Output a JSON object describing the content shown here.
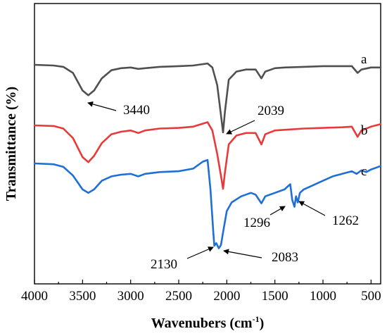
{
  "chart_data": {
    "type": "line",
    "title": "",
    "xlabel_main": "Wavenubers (cm",
    "xlabel_sup": "-1",
    "xlabel_tail": ")",
    "ylabel": "Transmittance (%)",
    "xlim": [
      4000,
      400
    ],
    "x_reversed": true,
    "x_ticks": [
      "4000",
      "3500",
      "3000",
      "2500",
      "2000",
      "1500",
      "1000",
      "500"
    ],
    "y_ticks_shown": false,
    "grid": false,
    "legend": "none",
    "colors": {
      "a": "#505050",
      "b": "#e83a3a",
      "c": "#1f6fd6"
    },
    "series": [
      {
        "name": "a",
        "points": [
          [
            4000,
            1.0
          ],
          [
            3800,
            0.99
          ],
          [
            3700,
            0.97
          ],
          [
            3600,
            0.88
          ],
          [
            3500,
            0.62
          ],
          [
            3440,
            0.55
          ],
          [
            3380,
            0.62
          ],
          [
            3300,
            0.8
          ],
          [
            3200,
            0.92
          ],
          [
            3100,
            0.95
          ],
          [
            3000,
            0.96
          ],
          [
            2920,
            0.94
          ],
          [
            2850,
            0.95
          ],
          [
            2700,
            0.97
          ],
          [
            2500,
            0.98
          ],
          [
            2350,
            0.99
          ],
          [
            2200,
            1.02
          ],
          [
            2150,
            0.96
          ],
          [
            2100,
            0.7
          ],
          [
            2060,
            0.25
          ],
          [
            2039,
            0.0
          ],
          [
            2020,
            0.3
          ],
          [
            1980,
            0.78
          ],
          [
            1900,
            0.9
          ],
          [
            1800,
            0.93
          ],
          [
            1700,
            0.93
          ],
          [
            1640,
            0.8
          ],
          [
            1600,
            0.9
          ],
          [
            1500,
            0.95
          ],
          [
            1400,
            0.96
          ],
          [
            1200,
            0.97
          ],
          [
            1000,
            0.98
          ],
          [
            800,
            0.98
          ],
          [
            700,
            0.98
          ],
          [
            640,
            0.88
          ],
          [
            600,
            0.93
          ],
          [
            500,
            0.96
          ],
          [
            400,
            0.96
          ]
        ]
      },
      {
        "name": "b",
        "points": [
          [
            4000,
            1.0
          ],
          [
            3800,
            0.99
          ],
          [
            3700,
            0.95
          ],
          [
            3600,
            0.8
          ],
          [
            3500,
            0.5
          ],
          [
            3440,
            0.42
          ],
          [
            3380,
            0.52
          ],
          [
            3300,
            0.72
          ],
          [
            3200,
            0.86
          ],
          [
            3100,
            0.9
          ],
          [
            3000,
            0.92
          ],
          [
            2920,
            0.88
          ],
          [
            2850,
            0.92
          ],
          [
            2700,
            0.95
          ],
          [
            2500,
            0.96
          ],
          [
            2350,
            0.98
          ],
          [
            2200,
            1.05
          ],
          [
            2150,
            0.92
          ],
          [
            2100,
            0.55
          ],
          [
            2060,
            0.2
          ],
          [
            2039,
            0.0
          ],
          [
            2020,
            0.25
          ],
          [
            1980,
            0.7
          ],
          [
            1900,
            0.84
          ],
          [
            1800,
            0.88
          ],
          [
            1700,
            0.88
          ],
          [
            1640,
            0.7
          ],
          [
            1600,
            0.86
          ],
          [
            1500,
            0.92
          ],
          [
            1400,
            0.93
          ],
          [
            1200,
            0.95
          ],
          [
            1000,
            0.96
          ],
          [
            800,
            0.97
          ],
          [
            700,
            0.98
          ],
          [
            640,
            0.82
          ],
          [
            600,
            0.92
          ],
          [
            500,
            0.98
          ],
          [
            400,
            1.02
          ]
        ]
      },
      {
        "name": "c",
        "points": [
          [
            4000,
            1.0
          ],
          [
            3800,
            0.99
          ],
          [
            3700,
            0.96
          ],
          [
            3600,
            0.86
          ],
          [
            3500,
            0.7
          ],
          [
            3440,
            0.66
          ],
          [
            3380,
            0.7
          ],
          [
            3300,
            0.8
          ],
          [
            3200,
            0.85
          ],
          [
            3100,
            0.87
          ],
          [
            3000,
            0.88
          ],
          [
            2920,
            0.85
          ],
          [
            2850,
            0.88
          ],
          [
            2700,
            0.9
          ],
          [
            2500,
            0.91
          ],
          [
            2350,
            0.94
          ],
          [
            2250,
            1.02
          ],
          [
            2200,
            1.04
          ],
          [
            2170,
            0.7
          ],
          [
            2140,
            0.2
          ],
          [
            2130,
            0.05
          ],
          [
            2110,
            0.08
          ],
          [
            2083,
            0.02
          ],
          [
            2060,
            0.06
          ],
          [
            2040,
            0.2
          ],
          [
            2000,
            0.45
          ],
          [
            1950,
            0.55
          ],
          [
            1850,
            0.62
          ],
          [
            1750,
            0.66
          ],
          [
            1700,
            0.64
          ],
          [
            1640,
            0.54
          ],
          [
            1600,
            0.62
          ],
          [
            1500,
            0.66
          ],
          [
            1400,
            0.7
          ],
          [
            1340,
            0.76
          ],
          [
            1320,
            0.58
          ],
          [
            1296,
            0.5
          ],
          [
            1280,
            0.62
          ],
          [
            1262,
            0.55
          ],
          [
            1240,
            0.66
          ],
          [
            1200,
            0.7
          ],
          [
            1100,
            0.75
          ],
          [
            1000,
            0.8
          ],
          [
            900,
            0.85
          ],
          [
            800,
            0.88
          ],
          [
            700,
            0.91
          ],
          [
            650,
            0.88
          ],
          [
            600,
            0.92
          ],
          [
            550,
            0.9
          ],
          [
            500,
            0.93
          ],
          [
            450,
            0.95
          ],
          [
            400,
            0.97
          ]
        ]
      }
    ],
    "series_labels": [
      "a",
      "b",
      "c"
    ],
    "annotations": [
      {
        "text": "3440",
        "x": 3440
      },
      {
        "text": "2039",
        "x": 2039
      },
      {
        "text": "2130",
        "x": 2130
      },
      {
        "text": "2083",
        "x": 2083
      },
      {
        "text": "1296",
        "x": 1296
      },
      {
        "text": "1262",
        "x": 1262
      }
    ]
  }
}
